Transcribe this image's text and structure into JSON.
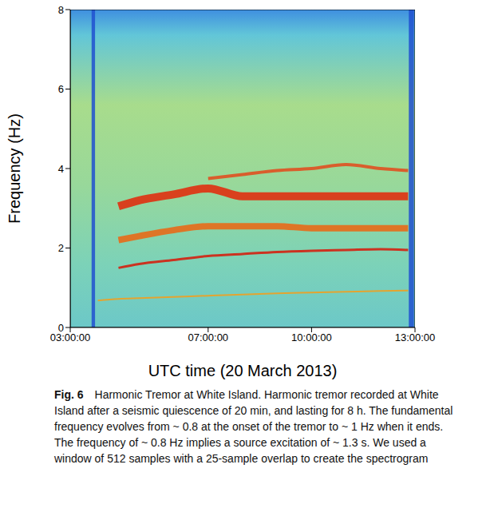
{
  "chart_data": {
    "type": "spectrogram",
    "figure_label": "Fig. 6",
    "title": "Harmonic Tremor at White Island.",
    "caption": "Harmonic tremor recorded at White Island after a seismic quiescence of 20 min, and lasting for 8 h. The fundamental frequency evolves from ~ 0.8 at the onset of the tremor to ~ 1 Hz when it ends. The frequency of ~ 0.8 Hz implies a source excitation of ~ 1.3 s. We used a window of 512 samples with a 25-sample overlap to create the spectrogram",
    "x_label": "UTC time (20 March 2013)",
    "y_label": "Frequency (Hz)",
    "xlim": [
      3,
      13
    ],
    "xticks": [
      {
        "value": 3,
        "label": "03:00:00"
      },
      {
        "value": 7,
        "label": "07:00:00"
      },
      {
        "value": 10,
        "label": "10:00:00"
      },
      {
        "value": 13,
        "label": "13:00:00"
      }
    ],
    "ylim": [
      0,
      8
    ],
    "yticks": [
      0,
      2,
      4,
      6,
      8
    ],
    "x": [
      3.8,
      4.4,
      5,
      6,
      7,
      8,
      9,
      10,
      11,
      12,
      12.8
    ],
    "series": [
      {
        "color": "#f0a020",
        "values": [
          0.68,
          0.72,
          0.74,
          0.77,
          0.8,
          0.83,
          0.86,
          0.88,
          0.9,
          0.92,
          0.93
        ]
      },
      {
        "color": "#d42010",
        "values": [
          null,
          1.5,
          1.6,
          1.7,
          1.8,
          1.85,
          1.9,
          1.93,
          1.95,
          1.97,
          1.95
        ]
      },
      {
        "color": "#e86a18",
        "values": [
          null,
          2.2,
          2.3,
          2.45,
          2.55,
          2.55,
          2.55,
          2.5,
          2.5,
          2.5,
          2.5
        ]
      },
      {
        "color": "#e03010",
        "values": [
          null,
          3.05,
          3.2,
          3.35,
          3.5,
          3.3,
          3.3,
          3.3,
          3.3,
          3.3,
          3.3
        ]
      },
      {
        "color": "#e05020",
        "values": [
          null,
          null,
          null,
          null,
          3.75,
          3.85,
          3.95,
          4.0,
          4.1,
          4.0,
          3.95
        ]
      }
    ],
    "gaps": {
      "color": "#2050d0",
      "x": [
        [
          3.62,
          3.72
        ],
        [
          12.82,
          12.97
        ]
      ]
    }
  }
}
